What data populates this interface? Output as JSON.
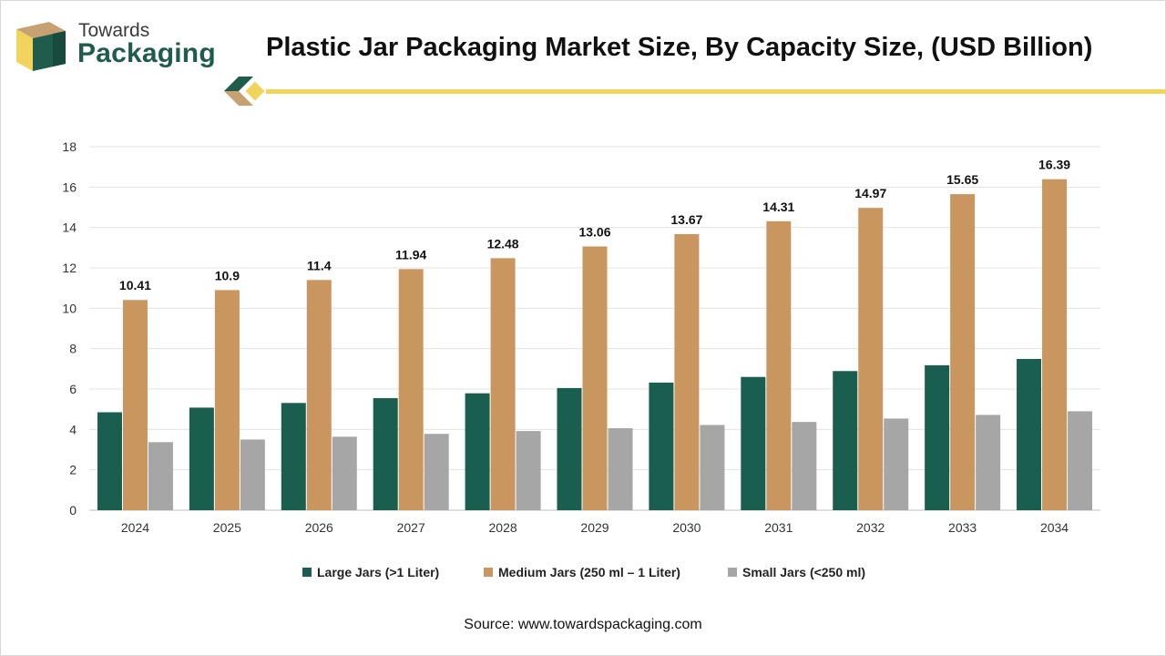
{
  "header": {
    "logo_line1": "Towards",
    "logo_line2": "Packaging",
    "title": "Plastic Jar Packaging Market Size, By Capacity Size, (USD Billion)"
  },
  "colors": {
    "large": "#1a5e50",
    "medium": "#c9965f",
    "small": "#a6a6a6",
    "accent_yellow": "#f2d45c",
    "brand_green": "#1f5c4b",
    "brand_tan": "#c8a173"
  },
  "chart_data": {
    "type": "bar",
    "title": "Plastic Jar Packaging Market Size, By Capacity Size, (USD Billion)",
    "xlabel": "",
    "ylabel": "",
    "ylim": [
      0,
      18
    ],
    "yticks": [
      0,
      2,
      4,
      6,
      8,
      10,
      12,
      14,
      16,
      18
    ],
    "grid": true,
    "legend_position": "bottom",
    "categories": [
      "2024",
      "2025",
      "2026",
      "2027",
      "2028",
      "2029",
      "2030",
      "2031",
      "2032",
      "2033",
      "2034"
    ],
    "series": [
      {
        "key": "large",
        "name": "Large Jars (>1 Liter)",
        "values": [
          4.85,
          5.08,
          5.31,
          5.55,
          5.79,
          6.05,
          6.32,
          6.6,
          6.89,
          7.18,
          7.49
        ],
        "labeled": false
      },
      {
        "key": "medium",
        "name": "Medium Jars (250 ml – 1 Liter)",
        "values": [
          10.41,
          10.9,
          11.4,
          11.94,
          12.48,
          13.06,
          13.67,
          14.31,
          14.97,
          15.65,
          16.39
        ],
        "labeled": true
      },
      {
        "key": "small",
        "name": "Small Jars (<250 ml)",
        "values": [
          3.37,
          3.5,
          3.64,
          3.78,
          3.92,
          4.06,
          4.22,
          4.37,
          4.54,
          4.72,
          4.9
        ],
        "labeled": false
      }
    ],
    "data_labels": [
      "10.41",
      "10.9",
      "11.4",
      "11.94",
      "12.48",
      "13.06",
      "13.67",
      "14.31",
      "14.97",
      "15.65",
      "16.39"
    ]
  },
  "legend": {
    "items": [
      "Large Jars (>1 Liter)",
      "Medium Jars (250 ml – 1 Liter)",
      "Small Jars (<250 ml)"
    ]
  },
  "footer": {
    "source": "Source: www.towardspackaging.com"
  }
}
